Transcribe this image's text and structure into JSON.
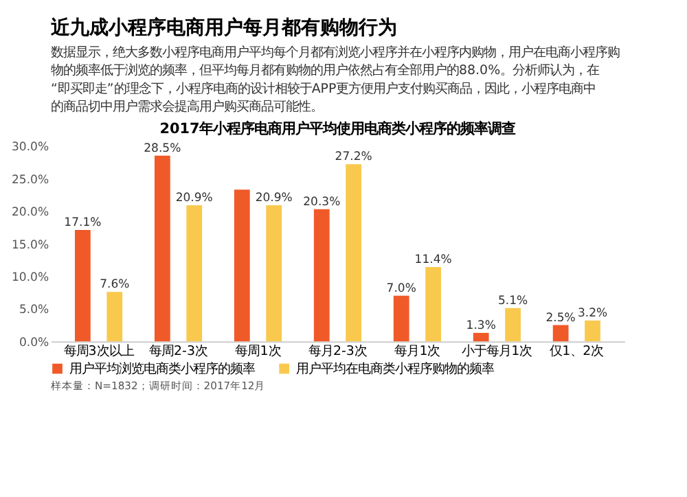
{
  "chart_data": {
    "type": "bar",
    "title": "2017年小程序电商用户平均使用电商类小程序的频率调查",
    "annotations": [
      "近九成小程序电商用户每月都有购物行为",
      "数据显示，绝大多数小程序电商用户平均每个月都有浏览小程序并在小程序内购物，用户在电商小程序购物的频率低于浏览的频率，但平均每月都有购物的用户依然占有全部用户的88.0%。分析师认为，在“即买即走”的理念下，小程序电商的设计相较于APP更方便用户支付购买商品，因此，小程序电商中的商品切中用户需求会提高用户购买商品可能性。",
      "样本量：N=1832；调研时间：2017年12月"
    ],
    "categories": [
      "每周3次以上",
      "每周2-3次",
      "每周1次",
      "每月2-3次",
      "每月1次",
      "小于每月1次",
      "仅1、2次"
    ],
    "series": [
      {
        "name": "用户平均浏览电商类小程序的频率",
        "color": "#f05a28",
        "values": [
          17.1,
          28.5,
          23.3,
          20.3,
          7.0,
          1.3,
          2.5
        ],
        "value_labels": [
          "17.1%",
          "28.5%",
          null,
          "20.3%",
          "7.0%",
          "1.3%",
          "2.5%"
        ]
      },
      {
        "name": "用户平均在电商类小程序购物的频率",
        "color": "#f9c94e",
        "values": [
          7.6,
          20.9,
          20.9,
          27.2,
          11.4,
          5.1,
          3.2
        ],
        "value_labels": [
          "7.6%",
          "20.9%",
          "20.9%",
          "27.2%",
          "11.4%",
          "5.1%",
          "3.2%"
        ]
      }
    ],
    "ylim": [
      0,
      30
    ],
    "yticks": [
      {
        "value": 0,
        "label": "0.0%"
      },
      {
        "value": 5,
        "label": "5.0%"
      },
      {
        "value": 10,
        "label": "10.0%"
      },
      {
        "value": 15,
        "label": "15.0%"
      },
      {
        "value": 20,
        "label": "20.0%"
      },
      {
        "value": 25,
        "label": "25.0%"
      },
      {
        "value": 30,
        "label": "30.0%"
      }
    ],
    "grid": false,
    "legend": "bottom"
  }
}
